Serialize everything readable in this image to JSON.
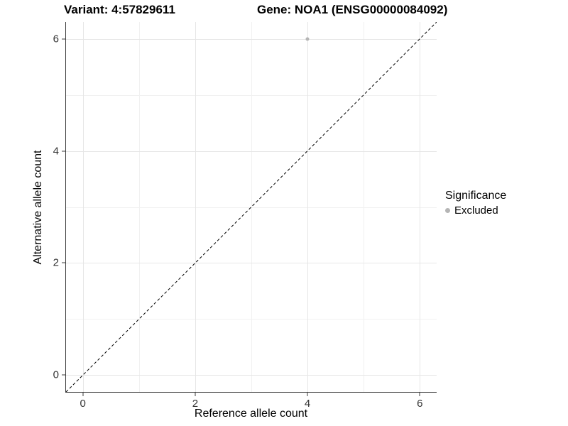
{
  "header": {
    "title_left": "Variant: 4:57829611",
    "title_right": "Gene: NOA1 (ENSG00000084092)"
  },
  "chart_data": {
    "type": "scatter",
    "title_left": "Variant: 4:57829611",
    "title_right": "Gene: NOA1 (ENSG00000084092)",
    "xlabel": "Reference allele count",
    "ylabel": "Alternative allele count",
    "xlim": [
      -0.3,
      6.3
    ],
    "ylim": [
      -0.3,
      6.3
    ],
    "x_ticks": [
      0,
      2,
      4,
      6
    ],
    "y_ticks": [
      0,
      2,
      4,
      6
    ],
    "x_minor_gridlines": [
      1,
      3,
      5
    ],
    "y_minor_gridlines": [
      1,
      3,
      5
    ],
    "grid": true,
    "series": [
      {
        "name": "Excluded",
        "marker": "circle",
        "color": "#b5b5b5",
        "points": [
          {
            "x": 4,
            "y": 6
          }
        ]
      }
    ],
    "reference_line": {
      "type": "identity",
      "from": [
        -0.3,
        -0.3
      ],
      "to": [
        6.3,
        6.3
      ],
      "style": "dashed",
      "color": "#000000"
    },
    "legend": {
      "title": "Significance",
      "position": "right",
      "entries": [
        {
          "label": "Excluded",
          "color": "#b5b5b5",
          "marker": "circle"
        }
      ]
    },
    "colors": {
      "background": "#ffffff",
      "grid_major": "#e6e6e6",
      "grid_minor": "#f1f1f1",
      "axis_line": "#3c3c3c",
      "tick_text": "#333333",
      "point": "#b5b5b5"
    }
  }
}
